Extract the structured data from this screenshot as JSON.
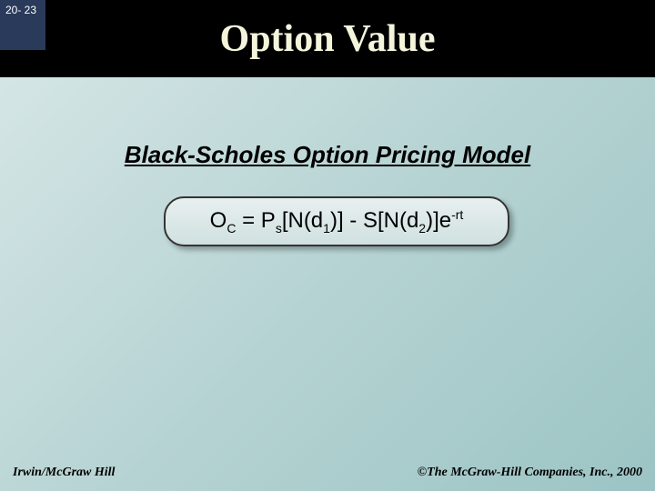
{
  "slide": {
    "number": "20- 23",
    "title": "Option Value"
  },
  "content": {
    "subtitle": "Black-Scholes Option Pricing Model"
  },
  "formula": {
    "leftVar": "O",
    "leftSub": "C",
    "eq": " = P",
    "pSub": "s",
    "part1": "[N(d",
    "d1": "1",
    "part2": ")] - S[N(d",
    "d2": "2",
    "part3": ")]e",
    "exp": "-rt"
  },
  "footer": {
    "left": "Irwin/McGraw Hill",
    "right": "©The McGraw-Hill Companies, Inc., 2000"
  },
  "colors": {
    "headerBg": "#000000",
    "numberBoxBg": "#2a3a5a",
    "titleColor": "#f5f5dc",
    "bgGradStart": "#d9e8e8",
    "bgGradEnd": "#9cc4c4"
  }
}
